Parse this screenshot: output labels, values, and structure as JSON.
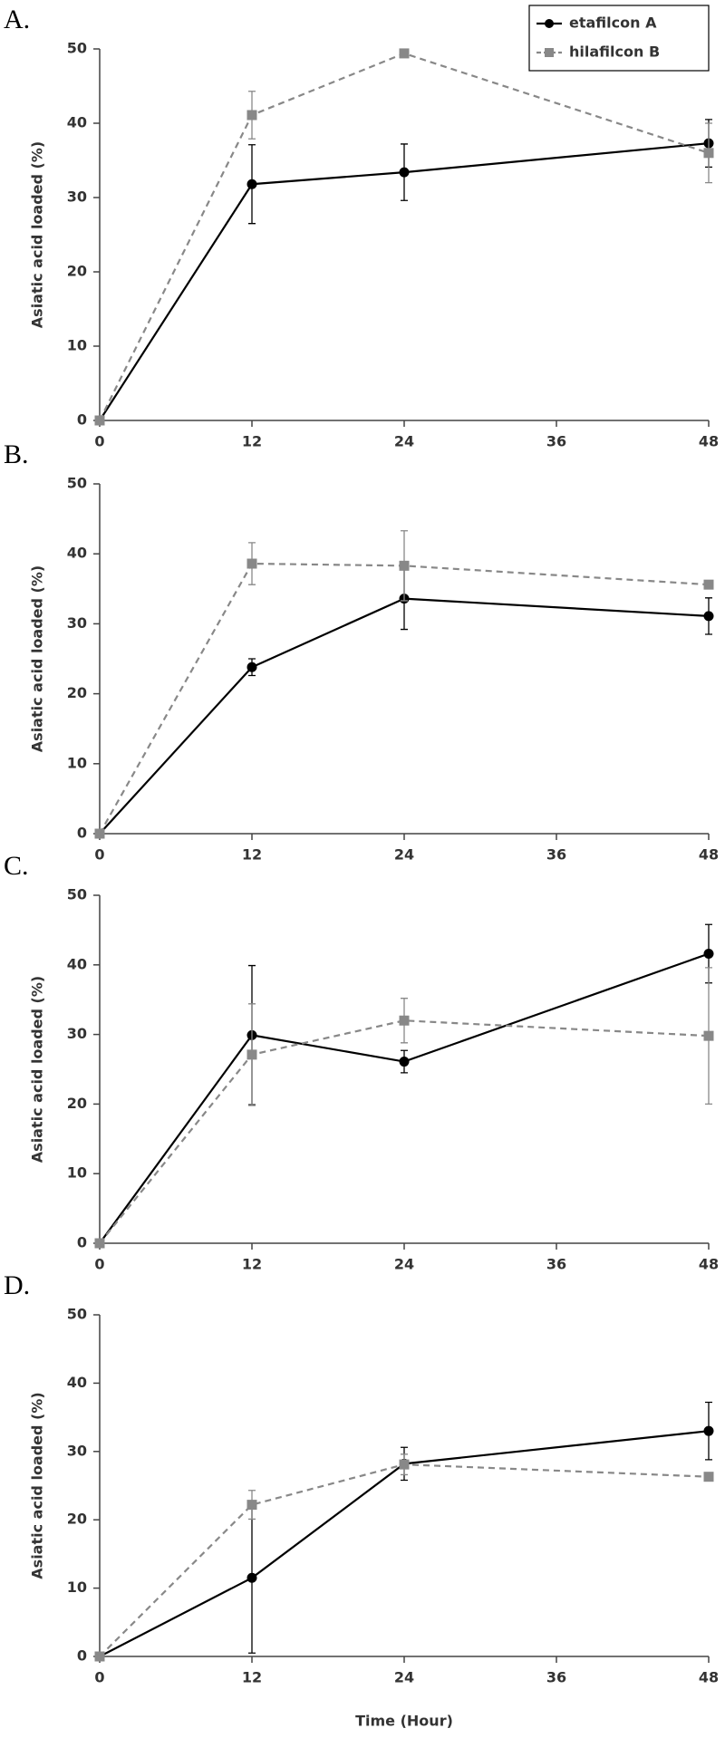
{
  "chart_data": [
    {
      "type": "line",
      "label": "A.",
      "y_label": "Asiatic acid loaded (%)",
      "x": [
        0,
        12,
        24,
        48
      ],
      "xlim": [
        0,
        48
      ],
      "xticks": [
        0,
        12,
        24,
        36,
        48
      ],
      "ylim": [
        0,
        50
      ],
      "yticks": [
        0,
        10,
        20,
        30,
        40,
        50
      ],
      "legend": "upper right",
      "series": [
        {
          "name": "etafilcon A",
          "color": "#000000",
          "marker": "circle",
          "dash": false,
          "values": [
            0,
            31.8,
            33.4,
            37.3
          ],
          "errors": [
            null,
            5.3,
            3.8,
            3.2
          ]
        },
        {
          "name": "hilafilcon B",
          "color": "#888888",
          "marker": "square",
          "dash": true,
          "values": [
            0,
            41.1,
            49.4,
            36.0
          ],
          "errors": [
            null,
            3.2,
            null,
            4.0
          ]
        }
      ]
    },
    {
      "type": "line",
      "label": "B.",
      "y_label": "Asiatic acid loaded (%)",
      "x": [
        0,
        12,
        24,
        48
      ],
      "xlim": [
        0,
        48
      ],
      "xticks": [
        0,
        12,
        24,
        36,
        48
      ],
      "ylim": [
        0,
        50
      ],
      "yticks": [
        0,
        10,
        20,
        30,
        40,
        50
      ],
      "series": [
        {
          "color": "#000000",
          "marker": "circle",
          "dash": false,
          "values": [
            0,
            23.8,
            33.6,
            31.1
          ],
          "errors": [
            null,
            1.2,
            4.4,
            2.6
          ]
        },
        {
          "color": "#888888",
          "marker": "square",
          "dash": true,
          "values": [
            0,
            38.6,
            38.3,
            35.6
          ],
          "errors": [
            null,
            3.0,
            5.0,
            null
          ]
        }
      ]
    },
    {
      "type": "line",
      "label": "C.",
      "y_label": "Asiatic acid loaded (%)",
      "x": [
        0,
        12,
        24,
        48
      ],
      "xlim": [
        0,
        48
      ],
      "xticks": [
        0,
        12,
        24,
        36,
        48
      ],
      "ylim": [
        0,
        50
      ],
      "yticks": [
        0,
        10,
        20,
        30,
        40,
        50
      ],
      "series": [
        {
          "color": "#000000",
          "marker": "circle",
          "dash": false,
          "values": [
            0,
            29.9,
            26.1,
            41.6
          ],
          "errors": [
            null,
            10.0,
            1.6,
            4.2
          ]
        },
        {
          "color": "#888888",
          "marker": "square",
          "dash": true,
          "values": [
            0,
            27.1,
            32.0,
            29.8
          ],
          "errors": [
            null,
            7.3,
            3.2,
            9.8
          ]
        }
      ]
    },
    {
      "type": "line",
      "label": "D.",
      "y_label": "Asiatic acid loaded (%)",
      "x_label": "Time (Hour)",
      "x": [
        0,
        12,
        24,
        48
      ],
      "xlim": [
        0,
        48
      ],
      "xticks": [
        0,
        12,
        24,
        36,
        48
      ],
      "ylim": [
        0,
        50
      ],
      "yticks": [
        0,
        10,
        20,
        30,
        40,
        50
      ],
      "series": [
        {
          "color": "#000000",
          "marker": "circle",
          "dash": false,
          "values": [
            0,
            11.5,
            28.2,
            33.0
          ],
          "errors": [
            null,
            11.0,
            2.4,
            4.2
          ]
        },
        {
          "color": "#888888",
          "marker": "square",
          "dash": true,
          "values": [
            0,
            22.2,
            28.1,
            26.3
          ],
          "errors": [
            null,
            2.1,
            1.5,
            null
          ]
        }
      ]
    }
  ]
}
